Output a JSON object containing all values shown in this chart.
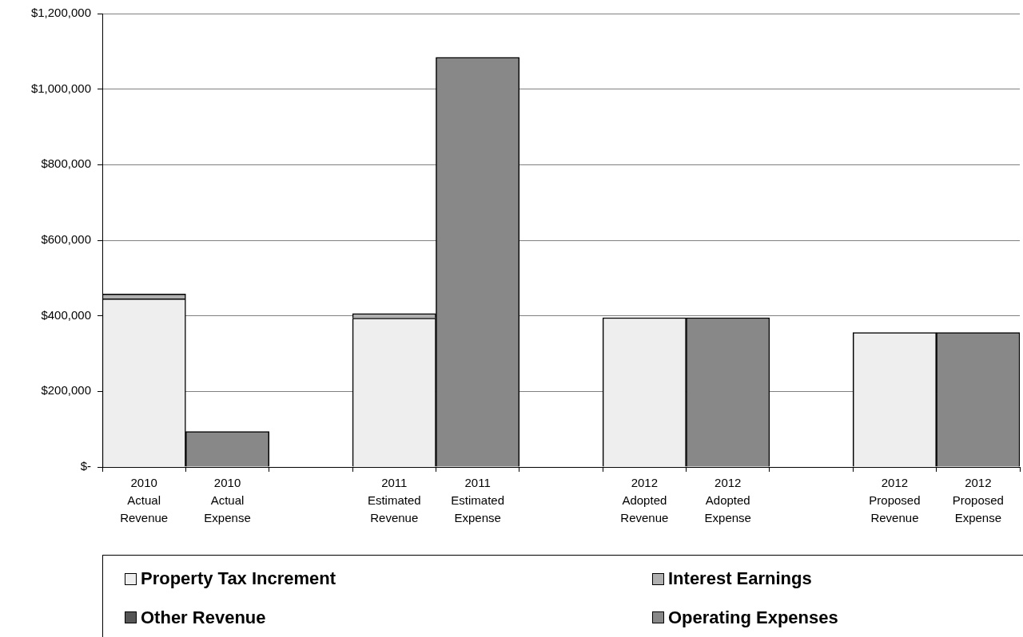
{
  "chart_data": {
    "type": "bar",
    "stacked": true,
    "categories": [
      "2010 Actual Revenue",
      "2010 Actual Expense",
      null,
      "2011 Estimated Revenue",
      "2011 Estimated Expense",
      null,
      "2012 Adopted Revenue",
      "2012 Adopted Expense",
      null,
      "2012 Proposed Revenue",
      "2012 Proposed Expense"
    ],
    "series": [
      {
        "name": "Property Tax Increment",
        "color": "#eeeeee",
        "values": [
          445000,
          null,
          null,
          394000,
          null,
          null,
          395000,
          null,
          null,
          356000,
          null
        ]
      },
      {
        "name": "Interest Earnings",
        "color": "#b0b0b0",
        "values": [
          13000,
          null,
          null,
          12000,
          null,
          null,
          null,
          null,
          null,
          null,
          null
        ]
      },
      {
        "name": "Other Revenue",
        "color": "#555555",
        "values": [
          null,
          null,
          null,
          null,
          null,
          null,
          null,
          null,
          null,
          null,
          null
        ]
      },
      {
        "name": "Operating Expenses",
        "color": "#888888",
        "values": [
          null,
          94000,
          null,
          null,
          1084000,
          null,
          null,
          395000,
          null,
          null,
          356000
        ]
      }
    ],
    "ylim": [
      0,
      1200000
    ],
    "yticks": [
      {
        "value": 0,
        "label": "$-"
      },
      {
        "value": 200000,
        "label": "$200,000"
      },
      {
        "value": 400000,
        "label": "$400,000"
      },
      {
        "value": 600000,
        "label": "$600,000"
      },
      {
        "value": 800000,
        "label": "$800,000"
      },
      {
        "value": 1000000,
        "label": "$1,000,000"
      },
      {
        "value": 1200000,
        "label": "$1,200,000"
      }
    ],
    "grid": "y",
    "legend": "bottom"
  }
}
